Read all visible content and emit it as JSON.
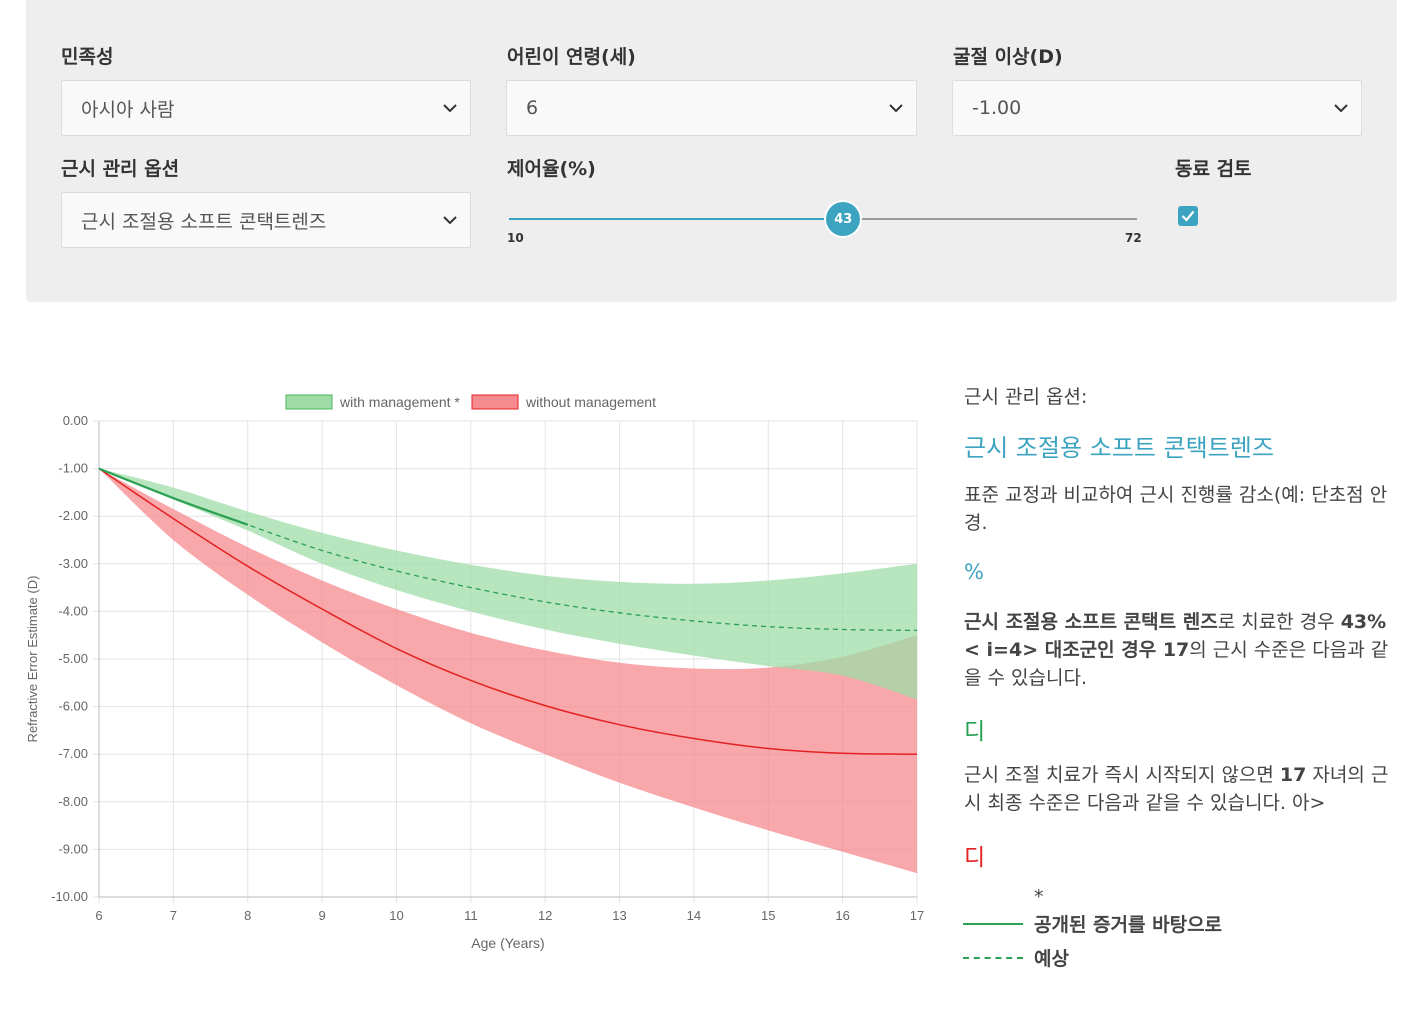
{
  "form": {
    "ethnicity": {
      "label": "민족성",
      "value": "아시아 사람"
    },
    "age": {
      "label": "어린이 연령(세)",
      "value": "6"
    },
    "refraction": {
      "label": "굴절 이상(D)",
      "value": "-1.00"
    },
    "management": {
      "label": "근시 관리 옵션",
      "value": "근시 조절용 소프트 콘택트렌즈"
    },
    "efficacy": {
      "label": "제어율(%)",
      "min": "10",
      "max": "72",
      "value": 43,
      "value_label": "43"
    },
    "peer_review": {
      "label": "동료 검토",
      "checked": true
    }
  },
  "colors": {
    "accent": "#3ca3c1",
    "green_fill": "#9fdca7",
    "green_line": "#2aa052",
    "red_fill": "#f58a8f",
    "red_line": "#e32222"
  },
  "chart_data": {
    "type": "line",
    "xlabel": "Age (Years)",
    "ylabel": "Refractive Error Estimate (D)",
    "xlim": [
      6,
      17
    ],
    "ylim": [
      -10,
      0
    ],
    "x_ticks": [
      "6",
      "7",
      "8",
      "9",
      "10",
      "11",
      "12",
      "13",
      "14",
      "15",
      "16",
      "17"
    ],
    "y_ticks": [
      "0.00",
      "-1.00",
      "-2.00",
      "-3.00",
      "-4.00",
      "-5.00",
      "-6.00",
      "-7.00",
      "-8.00",
      "-9.00",
      "-10.00"
    ],
    "legend": [
      {
        "name": "with management *",
        "color": "#9fdca7",
        "border": "#4cb55e"
      },
      {
        "name": "without management",
        "color": "#f58a8f",
        "border": "#e32222"
      }
    ],
    "x": [
      6,
      7,
      8,
      9,
      10,
      11,
      12,
      13,
      14,
      15,
      16,
      17
    ],
    "series": [
      {
        "name": "with management (upper)",
        "values": [
          -1.0,
          -1.4,
          -1.9,
          -2.35,
          -2.72,
          -3.02,
          -3.25,
          -3.38,
          -3.42,
          -3.35,
          -3.2,
          -3.0
        ]
      },
      {
        "name": "with management (lower)",
        "values": [
          -1.0,
          -1.65,
          -2.3,
          -3.0,
          -3.55,
          -4.0,
          -4.38,
          -4.68,
          -4.93,
          -5.15,
          -5.35,
          -5.85
        ]
      },
      {
        "name": "with management (mean)",
        "values": [
          -1.0,
          -1.62,
          -2.18,
          -2.72,
          -3.15,
          -3.5,
          -3.8,
          -4.03,
          -4.2,
          -4.32,
          -4.38,
          -4.4
        ]
      },
      {
        "name": "without management (upper)",
        "values": [
          -1.0,
          -1.85,
          -2.65,
          -3.35,
          -3.95,
          -4.45,
          -4.82,
          -5.08,
          -5.2,
          -5.18,
          -4.95,
          -4.5
        ]
      },
      {
        "name": "without management (lower)",
        "values": [
          -1.0,
          -2.5,
          -3.65,
          -4.65,
          -5.55,
          -6.35,
          -7.0,
          -7.6,
          -8.12,
          -8.6,
          -9.05,
          -9.5
        ]
      },
      {
        "name": "without management (mean)",
        "values": [
          -1.0,
          -2.05,
          -3.05,
          -3.95,
          -4.78,
          -5.45,
          -5.98,
          -6.38,
          -6.67,
          -6.88,
          -6.98,
          -7.0
        ]
      }
    ]
  },
  "side": {
    "option_label": "근시 관리 옵션:",
    "option_title": "근시 조절용 소프트 콘택트렌즈",
    "description": "표준 교정과 비교하여 근시 진행률 감소(예: 단초점 안경.",
    "percent_symbol": "%",
    "para1": {
      "b1": "근시 조절용 소프트 콘택트 렌즈",
      "t1": "로 치료한 경우 ",
      "b2": "43% < i=4> 대조군인 경우 17",
      "t2": "의 근시 수준은 다음과 같을 수 있습니다."
    },
    "green_glyph": "디",
    "para2": {
      "t1": "근시 조절 치료가 즉시 시작되지 않으면 ",
      "b1": "17",
      "t2": " 자녀의 근시 최종 수준은 다음과 같을 수 있습니다. 아>"
    },
    "red_glyph": "디",
    "legend_star": "*",
    "legend_solid": "공개된 증거를 바탕으로",
    "legend_dashed": "예상"
  }
}
